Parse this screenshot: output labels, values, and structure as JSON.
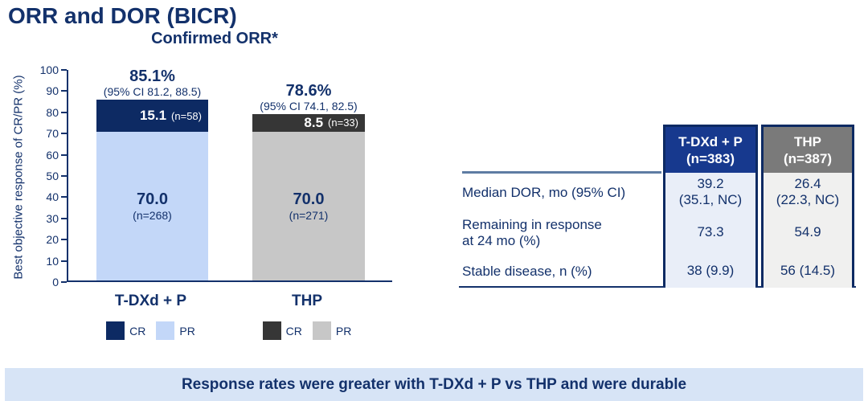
{
  "slide": {
    "title": "ORR and DOR (BICR)",
    "banner": "Response rates were greater with T-DXd + P vs THP and were durable"
  },
  "chart_data": {
    "type": "bar",
    "stacked": true,
    "title": "Confirmed ORR*",
    "ylabel": "Best objective response of CR/PR (%)",
    "ylim": [
      0,
      100
    ],
    "ytick_step": 10,
    "grid": false,
    "legend_position": "below-each-bar",
    "categories": [
      "T-DXd + P",
      "THP"
    ],
    "bars": [
      {
        "category": "T-DXd + P",
        "total_pct_label": "85.1%",
        "ci_label": "(95% CI 81.2, 88.5)",
        "segments": [
          {
            "name": "CR",
            "value": 15.1,
            "n_label": "(n=58)",
            "color": "#0d2a63",
            "text_color": "#ffffff"
          },
          {
            "name": "PR",
            "value": 70.0,
            "n_label": "(n=268)",
            "color": "#c3d7f8",
            "text_color": "#13316b"
          }
        ]
      },
      {
        "category": "THP",
        "total_pct_label": "78.6%",
        "ci_label": "(95% CI 74.1, 82.5)",
        "segments": [
          {
            "name": "CR",
            "value": 8.5,
            "n_label": "(n=33)",
            "color": "#363636",
            "text_color": "#ffffff"
          },
          {
            "name": "PR",
            "value": 70.0,
            "n_label": "(n=271)",
            "color": "#c7c7c7",
            "text_color": "#13316b"
          }
        ]
      }
    ]
  },
  "table": {
    "columns": [
      {
        "header": "T-DXd + P\n(n=383)",
        "header_bg": "#17398e",
        "body_bg": "#e9eef8"
      },
      {
        "header": "THP\n(n=387)",
        "header_bg": "#7a7a7a",
        "body_bg": "#f0f0ef"
      }
    ],
    "rows": [
      {
        "label": "Median DOR, mo (95% CI)",
        "values": [
          "39.2\n(35.1, NC)",
          "26.4\n(22.3, NC)"
        ]
      },
      {
        "label": "Remaining in response\nat 24 mo (%)",
        "values": [
          "73.3",
          "54.9"
        ]
      },
      {
        "label": "Stable disease, n (%)",
        "values": [
          "38 (9.9)",
          "56 (14.5)"
        ]
      }
    ]
  }
}
